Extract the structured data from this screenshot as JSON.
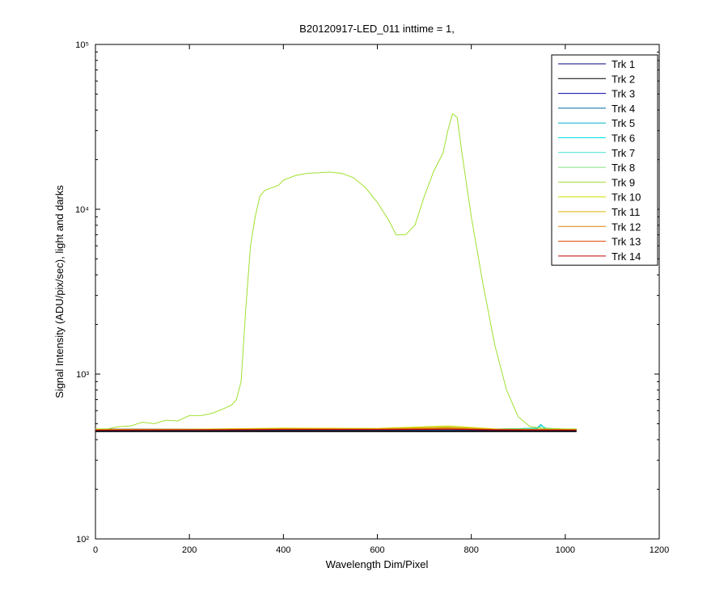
{
  "chart_data": {
    "type": "line",
    "title": "B20120917-LED_011 inttime = 1,",
    "xlabel": "Wavelength Dim/Pixel",
    "ylabel": "Signal Intensity (ADU/pix/sec), light and darks",
    "xlim": [
      0,
      1200
    ],
    "xticks": [
      0,
      200,
      400,
      600,
      800,
      1000,
      1200
    ],
    "ylim": [
      100,
      100000
    ],
    "yscale": "log",
    "yticks": [
      {
        "value": 100,
        "label": "10²"
      },
      {
        "value": 1000,
        "label": "10³"
      },
      {
        "value": 10000,
        "label": "10⁴"
      },
      {
        "value": 100000,
        "label": "10⁵"
      }
    ],
    "grid": false,
    "legend": "northeast",
    "series": [
      {
        "name": "Trk 1",
        "color": "#000080",
        "x": [
          0,
          200,
          400,
          600,
          800,
          1024
        ],
        "values": [
          455,
          455,
          455,
          455,
          455,
          455
        ]
      },
      {
        "name": "Trk 2",
        "color": "#000000",
        "linewidth": 4,
        "x": [
          0,
          200,
          400,
          600,
          800,
          1024
        ],
        "values": [
          455,
          455,
          455,
          455,
          455,
          455
        ]
      },
      {
        "name": "Trk 3",
        "color": "#0000b0",
        "x": [
          0,
          200,
          400,
          600,
          800,
          1024
        ],
        "values": [
          456,
          456,
          457,
          457,
          457,
          456
        ]
      },
      {
        "name": "Trk 4",
        "color": "#0068a0",
        "x": [
          0,
          200,
          400,
          600,
          800,
          1024
        ],
        "values": [
          457,
          457,
          458,
          458,
          458,
          457
        ]
      },
      {
        "name": "Trk 5",
        "color": "#00b0c8",
        "x": [
          0,
          200,
          400,
          600,
          800,
          940,
          948,
          956,
          1024
        ],
        "values": [
          458,
          458,
          460,
          460,
          460,
          470,
          495,
          470,
          458
        ]
      },
      {
        "name": "Trk 6",
        "color": "#00e0e0",
        "x": [
          0,
          200,
          400,
          600,
          800,
          940,
          950,
          960,
          1024
        ],
        "values": [
          459,
          459,
          462,
          462,
          462,
          468,
          485,
          468,
          459
        ]
      },
      {
        "name": "Trk 7",
        "color": "#40e0d0",
        "x": [
          0,
          200,
          400,
          600,
          800,
          1024
        ],
        "values": [
          459,
          460,
          463,
          463,
          463,
          459
        ]
      },
      {
        "name": "Trk 8",
        "color": "#80e080",
        "x": [
          0,
          200,
          400,
          600,
          750,
          850,
          1024
        ],
        "values": [
          460,
          462,
          468,
          466,
          478,
          463,
          460
        ]
      },
      {
        "name": "Trk 9",
        "color": "#a0e030",
        "x": [
          0,
          25,
          50,
          75,
          100,
          125,
          150,
          175,
          200,
          225,
          250,
          275,
          290,
          300,
          310,
          320,
          330,
          340,
          350,
          360,
          375,
          390,
          400,
          425,
          450,
          500,
          525,
          550,
          575,
          600,
          625,
          640,
          660,
          680,
          700,
          720,
          740,
          750,
          760,
          770,
          780,
          800,
          825,
          850,
          875,
          900,
          925,
          950,
          1000,
          1024
        ],
        "values": [
          465,
          465,
          480,
          485,
          510,
          500,
          525,
          520,
          560,
          560,
          580,
          620,
          650,
          700,
          900,
          2500,
          6000,
          9000,
          12000,
          13000,
          13500,
          14000,
          15000,
          16000,
          16500,
          16800,
          16500,
          15500,
          13500,
          11000,
          8500,
          7000,
          7000,
          8000,
          12000,
          17000,
          22000,
          30000,
          38000,
          36000,
          22000,
          9000,
          3500,
          1500,
          800,
          550,
          480,
          470,
          465,
          465
        ]
      },
      {
        "name": "Trk 10",
        "color": "#d0e000",
        "x": [
          0,
          200,
          400,
          600,
          750,
          850,
          1024
        ],
        "values": [
          461,
          463,
          470,
          468,
          485,
          465,
          461
        ]
      },
      {
        "name": "Trk 11",
        "color": "#e0b000",
        "x": [
          0,
          200,
          400,
          600,
          750,
          850,
          1024
        ],
        "values": [
          460,
          462,
          467,
          466,
          476,
          463,
          460
        ]
      },
      {
        "name": "Trk 12",
        "color": "#e08000",
        "x": [
          0,
          200,
          400,
          600,
          750,
          850,
          1024
        ],
        "values": [
          459,
          461,
          465,
          464,
          470,
          462,
          459
        ]
      },
      {
        "name": "Trk 13",
        "color": "#e04000",
        "x": [
          0,
          200,
          400,
          600,
          750,
          850,
          1024
        ],
        "values": [
          458,
          459,
          462,
          462,
          465,
          460,
          458
        ]
      },
      {
        "name": "Trk 14",
        "color": "#c00000",
        "x": [
          0,
          200,
          400,
          600,
          750,
          850,
          1024
        ],
        "values": [
          457,
          458,
          460,
          460,
          462,
          458,
          457
        ]
      }
    ]
  }
}
